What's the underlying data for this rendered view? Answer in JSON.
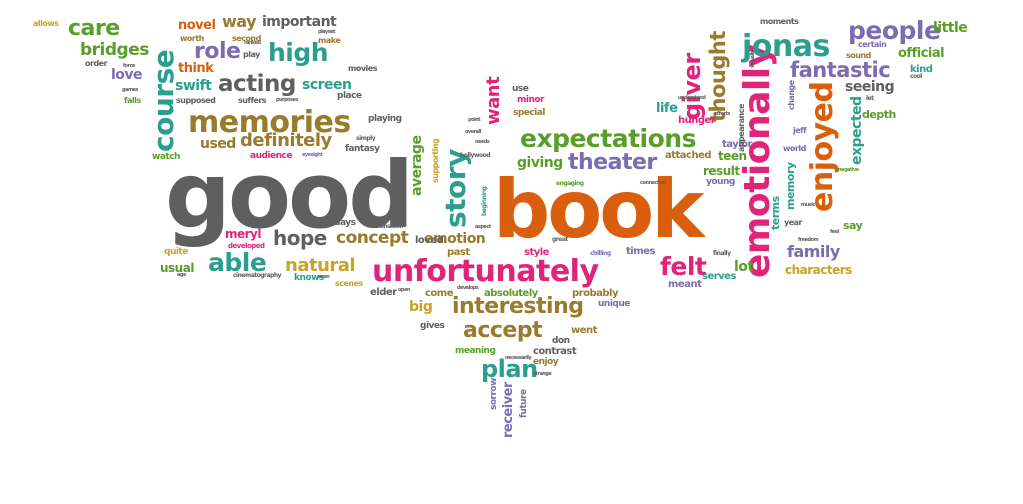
{
  "words": [
    {
      "t": "good",
      "c": "gray"
    },
    {
      "t": "book",
      "c": "orange"
    },
    {
      "t": "unfortunately",
      "c": "pink"
    },
    {
      "t": "expectations",
      "c": "green"
    },
    {
      "t": "emotionally",
      "c": "pink"
    },
    {
      "t": "memories",
      "c": "brown"
    },
    {
      "t": "course",
      "c": "teal"
    },
    {
      "t": "jonas",
      "c": "teal"
    },
    {
      "t": "enjoyed",
      "c": "orange"
    },
    {
      "t": "people",
      "c": "purple"
    },
    {
      "t": "story",
      "c": "teal"
    },
    {
      "t": "theater",
      "c": "purple"
    },
    {
      "t": "interesting",
      "c": "brown"
    },
    {
      "t": "fantastic",
      "c": "purple"
    },
    {
      "t": "acting",
      "c": "gray"
    },
    {
      "t": "definitely",
      "c": "brown"
    },
    {
      "t": "accept",
      "c": "brown"
    },
    {
      "t": "felt",
      "c": "pink"
    },
    {
      "t": "giver",
      "c": "pink"
    },
    {
      "t": "thought",
      "c": "brown"
    },
    {
      "t": "high",
      "c": "teal"
    },
    {
      "t": "role",
      "c": "purple"
    },
    {
      "t": "care",
      "c": "green"
    },
    {
      "t": "bridges",
      "c": "green"
    },
    {
      "t": "able",
      "c": "teal"
    },
    {
      "t": "hope",
      "c": "gray"
    },
    {
      "t": "concept",
      "c": "brown"
    },
    {
      "t": "plan",
      "c": "teal"
    },
    {
      "t": "natural",
      "c": "gold"
    },
    {
      "t": "family",
      "c": "purple"
    },
    {
      "t": "want",
      "c": "pink"
    },
    {
      "t": "emotion",
      "c": "brown"
    },
    {
      "t": "way",
      "c": "brown"
    },
    {
      "t": "important",
      "c": "gray"
    },
    {
      "t": "novel",
      "c": "orange"
    },
    {
      "t": "expected",
      "c": "teal"
    },
    {
      "t": "swift",
      "c": "teal"
    },
    {
      "t": "screen",
      "c": "teal"
    },
    {
      "t": "used",
      "c": "brown"
    },
    {
      "t": "giving",
      "c": "green"
    },
    {
      "t": "average",
      "c": "green"
    },
    {
      "t": "love",
      "c": "purple"
    },
    {
      "t": "think",
      "c": "orange"
    },
    {
      "t": "official",
      "c": "green"
    },
    {
      "t": "little",
      "c": "green"
    },
    {
      "t": "seeing",
      "c": "gray"
    },
    {
      "t": "lot",
      "c": "green"
    },
    {
      "t": "characters",
      "c": "gold"
    },
    {
      "t": "receiver",
      "c": "purple"
    },
    {
      "t": "big",
      "c": "gold"
    },
    {
      "t": "result",
      "c": "green"
    },
    {
      "t": "teen",
      "c": "green"
    },
    {
      "t": "meryl",
      "c": "pink"
    },
    {
      "t": "usual",
      "c": "green"
    },
    {
      "t": "life",
      "c": "teal"
    },
    {
      "t": "memory",
      "c": "teal"
    },
    {
      "t": "terms",
      "c": "teal"
    },
    {
      "t": "kind",
      "c": "teal"
    },
    {
      "t": "say",
      "c": "green"
    },
    {
      "t": "depth",
      "c": "green"
    },
    {
      "t": "taylor",
      "c": "purple"
    },
    {
      "t": "serves",
      "c": "teal"
    },
    {
      "t": "elder",
      "c": "gray"
    },
    {
      "t": "loved",
      "c": "gray"
    },
    {
      "t": "past",
      "c": "brown"
    },
    {
      "t": "style",
      "c": "pink"
    },
    {
      "t": "times",
      "c": "purple"
    },
    {
      "t": "meant",
      "c": "purple"
    },
    {
      "t": "probably",
      "c": "brown"
    },
    {
      "t": "absolutely",
      "c": "green"
    },
    {
      "t": "come",
      "c": "brown"
    },
    {
      "t": "contrast",
      "c": "gray"
    },
    {
      "t": "enjoy",
      "c": "brown"
    },
    {
      "t": "went",
      "c": "brown"
    },
    {
      "t": "don",
      "c": "gray"
    },
    {
      "t": "gives",
      "c": "gray"
    },
    {
      "t": "meaning",
      "c": "green"
    },
    {
      "t": "sorrow",
      "c": "purple"
    },
    {
      "t": "future",
      "c": "purple"
    },
    {
      "t": "unique",
      "c": "purple"
    },
    {
      "t": "attached",
      "c": "brown"
    },
    {
      "t": "hunger",
      "c": "pink"
    },
    {
      "t": "young",
      "c": "purple"
    },
    {
      "t": "special",
      "c": "brown"
    },
    {
      "t": "minor",
      "c": "pink"
    },
    {
      "t": "use",
      "c": "gray"
    },
    {
      "t": "watch",
      "c": "green"
    },
    {
      "t": "audience",
      "c": "pink"
    },
    {
      "t": "fantasy",
      "c": "gray"
    },
    {
      "t": "days",
      "c": "gray"
    },
    {
      "t": "quite",
      "c": "gold"
    },
    {
      "t": "knows",
      "c": "teal"
    },
    {
      "t": "scenes",
      "c": "gold"
    },
    {
      "t": "playing",
      "c": "gray"
    },
    {
      "t": "place",
      "c": "gray"
    },
    {
      "t": "movies",
      "c": "gray"
    },
    {
      "t": "make",
      "c": "brown"
    },
    {
      "t": "second",
      "c": "brown"
    },
    {
      "t": "worth",
      "c": "brown"
    },
    {
      "t": "play",
      "c": "gray"
    },
    {
      "t": "supposed",
      "c": "gray"
    },
    {
      "t": "suffers",
      "c": "gray"
    },
    {
      "t": "order",
      "c": "gray"
    },
    {
      "t": "falls",
      "c": "green"
    },
    {
      "t": "allows",
      "c": "gold"
    },
    {
      "t": "moments",
      "c": "gray"
    },
    {
      "t": "certain",
      "c": "purple"
    },
    {
      "t": "sound",
      "c": "brown"
    },
    {
      "t": "jeff",
      "c": "purple"
    },
    {
      "t": "world",
      "c": "purple"
    },
    {
      "t": "year",
      "c": "gray"
    },
    {
      "t": "appearance",
      "c": "gray"
    },
    {
      "t": "change",
      "c": "purple"
    },
    {
      "t": "supporting",
      "c": "gold"
    },
    {
      "t": "developed",
      "c": "pink"
    },
    {
      "t": "cinematography",
      "c": "gray"
    },
    {
      "t": "beginning",
      "c": "teal"
    },
    {
      "t": "hollywood",
      "c": "gray"
    },
    {
      "t": "engaging",
      "c": "green"
    },
    {
      "t": "chilling",
      "c": "purple"
    },
    {
      "t": "finally",
      "c": "gray"
    },
    {
      "t": "great",
      "c": "gray"
    },
    {
      "t": "transition",
      "c": "gray"
    },
    {
      "t": "simply",
      "c": "gray"
    },
    {
      "t": "necessarily",
      "c": "gray"
    },
    {
      "t": "strange",
      "c": "gray"
    },
    {
      "t": "purposes",
      "c": "gray"
    },
    {
      "t": "playset",
      "c": "gray"
    },
    {
      "t": "ranked",
      "c": "gray"
    },
    {
      "t": "force",
      "c": "gray"
    },
    {
      "t": "games",
      "c": "gray"
    },
    {
      "t": "eyesight",
      "c": "purple"
    },
    {
      "t": "cool",
      "c": "gray"
    },
    {
      "t": "let",
      "c": "gray"
    },
    {
      "t": "negative",
      "c": "green"
    },
    {
      "t": "feel",
      "c": "gray"
    },
    {
      "t": "freedom",
      "c": "gray"
    },
    {
      "t": "point",
      "c": "gray"
    },
    {
      "t": "needs",
      "c": "gray"
    },
    {
      "t": "aspect",
      "c": "gray"
    },
    {
      "t": "develops",
      "c": "gray"
    },
    {
      "t": "understand",
      "c": "gray"
    },
    {
      "t": "effects",
      "c": "gray"
    },
    {
      "t": "connection",
      "c": "gray"
    },
    {
      "t": "music",
      "c": "gray"
    },
    {
      "t": "age",
      "c": "gray"
    },
    {
      "t": "seen",
      "c": "gray"
    },
    {
      "t": "open",
      "c": "gray"
    },
    {
      "t": "overall",
      "c": "gray"
    },
    {
      "t": "visually",
      "c": "gray"
    }
  ]
}
